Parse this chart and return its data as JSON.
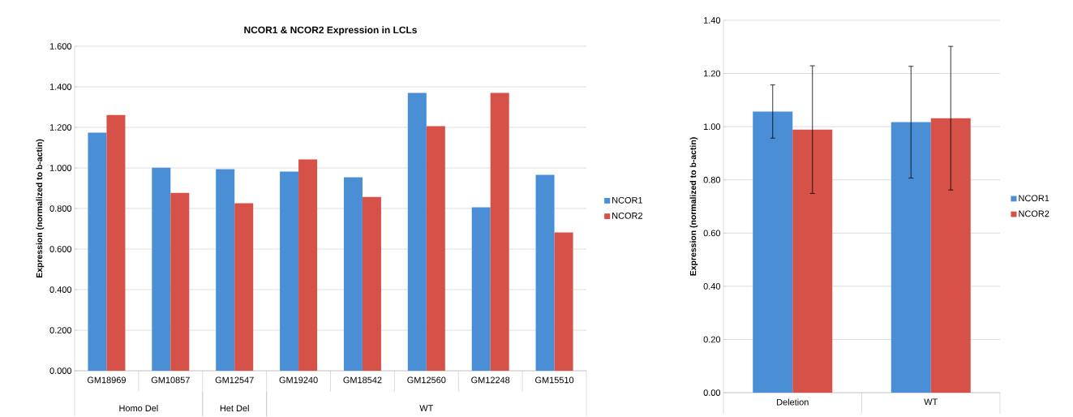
{
  "chart_data": [
    {
      "type": "bar",
      "title": "NCOR1 & NCOR2 Expression in LCLs",
      "ylabel": "Expression (normalized to b-actin)",
      "categories": [
        "GM18969",
        "GM10857",
        "GM12547",
        "GM19240",
        "GM18542",
        "GM12560",
        "GM12248",
        "GM15510"
      ],
      "series": [
        {
          "name": "NCOR1",
          "color": "#4a8fd6",
          "values": [
            1.174,
            1.001,
            0.994,
            0.982,
            0.954,
            1.37,
            0.806,
            0.966
          ]
        },
        {
          "name": "NCOR2",
          "color": "#d65248",
          "values": [
            1.261,
            0.877,
            0.826,
            1.042,
            0.857,
            1.206,
            1.37,
            0.682
          ]
        }
      ],
      "ylim": [
        0,
        1.6
      ],
      "yticks": [
        {
          "value": 0,
          "label": "0.000"
        },
        {
          "value": 0.2,
          "label": "0.200"
        },
        {
          "value": 0.4,
          "label": "0.400"
        },
        {
          "value": 0.6,
          "label": "0.600"
        },
        {
          "value": 0.8,
          "label": "0.800"
        },
        {
          "value": 1.0,
          "label": "1.000"
        },
        {
          "value": 1.2,
          "label": "1.200"
        },
        {
          "value": 1.4,
          "label": "1.400"
        },
        {
          "value": 1.6,
          "label": "1.600"
        }
      ],
      "annotations": [
        "Homo Del",
        "Het Del",
        "WT"
      ],
      "grid": "y",
      "legend": "right"
    },
    {
      "type": "bar",
      "ylabel": "Expression (normalized to b-actin)",
      "categories": [
        "Deletion",
        "WT"
      ],
      "series": [
        {
          "name": "NCOR1",
          "color": "#4a8fd6",
          "values": [
            1.057,
            1.017
          ],
          "errors": [
            0.1,
            0.21
          ]
        },
        {
          "name": "NCOR2",
          "color": "#d65248",
          "values": [
            0.989,
            1.032
          ],
          "errors": [
            0.24,
            0.27
          ]
        }
      ],
      "ylim": [
        0,
        1.4
      ],
      "yticks": [
        {
          "value": 0,
          "label": "0.00"
        },
        {
          "value": 0.2,
          "label": "0.20"
        },
        {
          "value": 0.4,
          "label": "0.40"
        },
        {
          "value": 0.6,
          "label": "0.60"
        },
        {
          "value": 0.8,
          "label": "0.80"
        },
        {
          "value": 1.0,
          "label": "1.00"
        },
        {
          "value": 1.2,
          "label": "1.20"
        },
        {
          "value": 1.4,
          "label": "1.40"
        }
      ],
      "grid": "y",
      "legend": "right"
    }
  ]
}
